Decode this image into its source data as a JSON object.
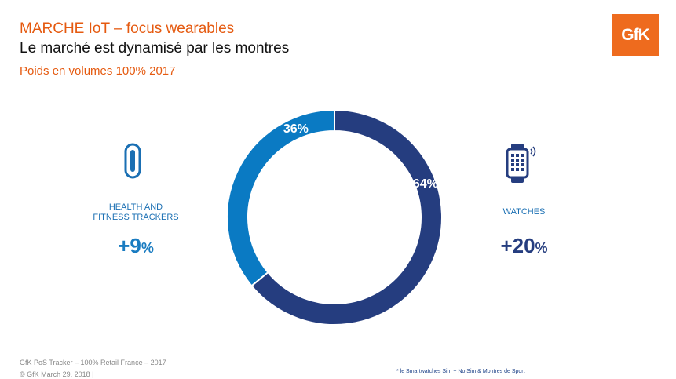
{
  "header": {
    "title": "MARCHE IoT – focus wearables",
    "headline": "Le marché est dynamisé par les montres",
    "subtitle": "Poids en volumes 100% 2017",
    "logo_text": "GfK"
  },
  "chart_data": {
    "type": "pie",
    "variant": "donut",
    "title": "",
    "categories": [
      "HEALTH AND FITNESS TRACKERS",
      "WATCHES"
    ],
    "values": [
      36,
      64
    ],
    "labels": [
      "36%",
      "64%"
    ],
    "colors": [
      "#0a7ac3",
      "#253d7f"
    ],
    "start_angle_deg": 0,
    "direction": "clockwise_from_top_watches_first"
  },
  "segments": {
    "trackers": {
      "label": "HEALTH AND FITNESS TRACKERS",
      "label_line1": "HEALTH AND",
      "label_line2": "FITNESS TRACKERS",
      "growth_num": "+9",
      "growth_unit": "%",
      "icon": "fitness-band-icon"
    },
    "watches": {
      "label": "WATCHES",
      "growth_num": "+20",
      "growth_unit": "%",
      "icon": "smartwatch-icon"
    }
  },
  "footer": {
    "source": "GfK PoS Tracker – 100% Retail France – 2017",
    "copyright": "© GfK March 29, 2018 |",
    "note": "* le Smartwatches Sim + No Sim & Montres de Sport"
  },
  "colors": {
    "accent_orange": "#e55a10",
    "logo_orange": "#ee6b1e",
    "tracker_blue": "#0a7ac3",
    "watch_navy": "#253d7f"
  }
}
